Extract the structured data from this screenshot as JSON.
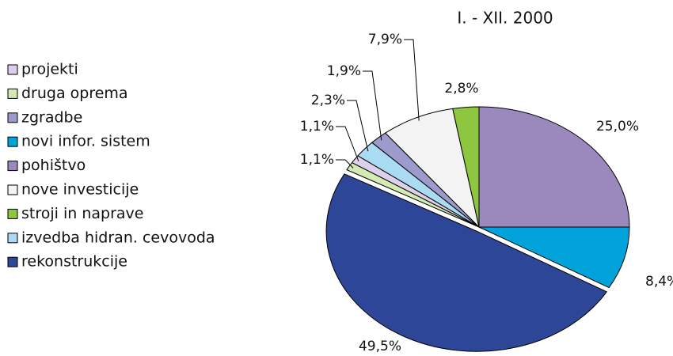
{
  "chart_data": {
    "type": "pie",
    "title": "I. - XII. 2000",
    "categories": [
      "pohištvo",
      "novi infor. sistem",
      "rekonstrukcije",
      "druga oprema",
      "projekti",
      "izvedba hidran. cevovoda",
      "zgradbe",
      "nove investicije",
      "stroji in naprave"
    ],
    "values": [
      25.0,
      8.4,
      49.5,
      1.1,
      1.1,
      2.3,
      1.9,
      7.9,
      2.8
    ],
    "value_labels": [
      "25,0%",
      "8,4%",
      "49,5%",
      "1,1%",
      "1,1%",
      "2,3%",
      "1,9%",
      "7,9%",
      "2,8%"
    ],
    "colors": [
      "#9b88bd",
      "#00a3d9",
      "#2e4697",
      "#d5e9b5",
      "#dcd0ea",
      "#a9dbf2",
      "#9d9bcb",
      "#f3f3f3",
      "#8ec63f"
    ],
    "legend": [
      "projekti",
      "druga oprema",
      "zgradbe",
      "novi infor. sistem",
      "pohištvo",
      "nove investicije",
      "stroji in naprave",
      "izvedba hidran. cevovoda",
      "rekonstrukcije"
    ]
  }
}
